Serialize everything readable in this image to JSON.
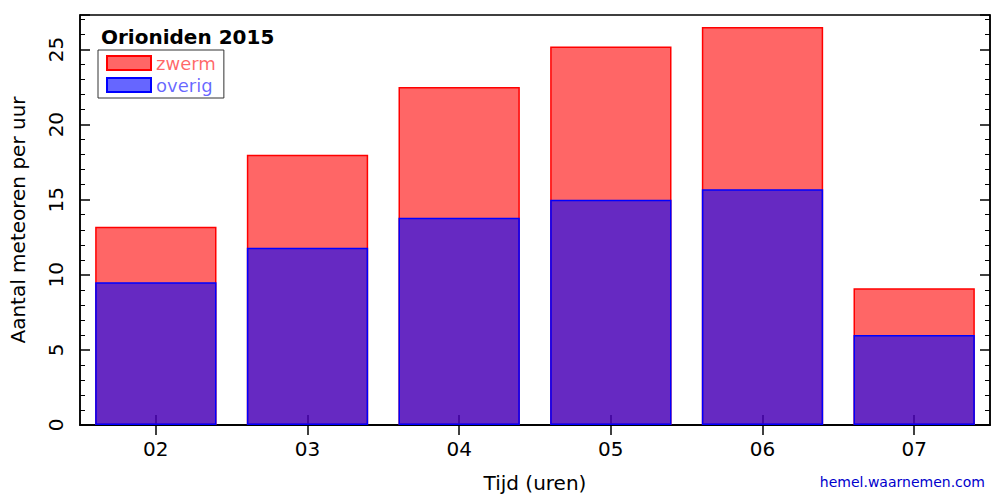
{
  "chart_data": {
    "type": "bar",
    "title": "Orioniden 2015",
    "x_label": "Tijd (uren)",
    "y_label": "Aantal meteoren per uur",
    "source": "hemel.waarnemen.com",
    "categories": [
      "02",
      "03",
      "04",
      "05",
      "06",
      "07"
    ],
    "series": [
      {
        "name": "zwerm",
        "color": "#ff0000",
        "values": [
          3.7,
          6.2,
          8.7,
          10.2,
          10.8,
          3.1
        ]
      },
      {
        "name": "overig",
        "color": "#0000ff",
        "values": [
          9.5,
          11.8,
          13.8,
          15.0,
          15.7,
          6.0
        ]
      }
    ],
    "stacked": true,
    "ylim": [
      0,
      27.3
    ],
    "yticks": [
      0,
      5,
      10,
      15,
      20,
      25
    ],
    "grid": false,
    "legend": "upper left"
  }
}
